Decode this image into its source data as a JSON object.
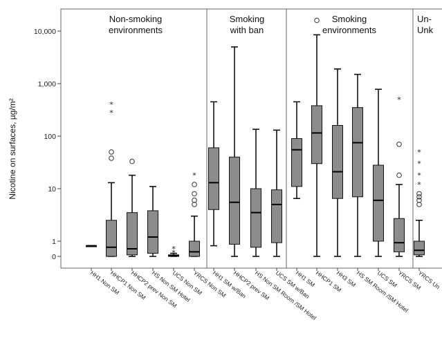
{
  "chart_data": {
    "type": "boxplot",
    "ylabel": "Nicotine on surfaces, µg/m²",
    "y_scale": "log (0 shown below 1)",
    "y_ticks": [
      {
        "value": 10000,
        "label": "10,000"
      },
      {
        "value": 1000,
        "label": "1,000"
      },
      {
        "value": 100,
        "label": "100"
      },
      {
        "value": 10,
        "label": "10"
      },
      {
        "value": 1,
        "label": "1"
      },
      {
        "value": 0,
        "label": "0"
      }
    ],
    "groups": [
      {
        "lines": [
          "Non-smoking",
          "environments"
        ]
      },
      {
        "lines": [
          "Smoking",
          "with ban"
        ]
      },
      {
        "lines": [
          "Smoking",
          "environments"
        ]
      },
      {
        "lines": [
          "Un-",
          "known"
        ]
      }
    ],
    "categories": [
      {
        "label": "HH1 Non SM",
        "group": 0,
        "min": 0.7,
        "q1": 0.7,
        "median": 0.7,
        "q3": 0.7,
        "max": 0.7,
        "circles": [],
        "stars": []
      },
      {
        "label": "HHCP1 Non SM",
        "group": 0,
        "min": 0,
        "q1": 0,
        "median": 0.6,
        "q3": 2.5,
        "max": 13,
        "circles": [
          50,
          38
        ],
        "stars": [
          400,
          280
        ]
      },
      {
        "label": "HHCP2 prev Non SM",
        "group": 0,
        "min": 0,
        "q1": 0.1,
        "median": 0.5,
        "q3": 3.5,
        "max": 18,
        "circles": [
          33
        ],
        "stars": []
      },
      {
        "label": "HS Non SM Hotel",
        "group": 0,
        "min": 0,
        "q1": 0.2,
        "median": 1.2,
        "q3": 3.8,
        "max": 11,
        "circles": [],
        "stars": []
      },
      {
        "label": "UCS Non SM",
        "group": 0,
        "min": 0,
        "q1": 0,
        "median": 0.05,
        "q3": 0.1,
        "max": 0.2,
        "circles": [],
        "stars": [
          0.5,
          0.25
        ]
      },
      {
        "label": "YRCS Non SM",
        "group": 0,
        "min": 0,
        "q1": 0,
        "median": 0.3,
        "q3": 1,
        "max": 3,
        "circles": [
          12,
          8,
          6,
          5
        ],
        "stars": [
          18
        ]
      },
      {
        "label": "HH1 SM w/Ban",
        "group": 1,
        "min": 0.7,
        "q1": 4,
        "median": 13,
        "q3": 60,
        "max": 450,
        "circles": [],
        "stars": []
      },
      {
        "label": "HHCP2 prev SM",
        "group": 1,
        "min": 0,
        "q1": 0.8,
        "median": 5.5,
        "q3": 40,
        "max": 5000,
        "circles": [],
        "stars": []
      },
      {
        "label": "HS Non SM Room /SM Hotel",
        "group": 1,
        "min": 0,
        "q1": 0.6,
        "median": 3.5,
        "q3": 10,
        "max": 135,
        "circles": [],
        "stars": []
      },
      {
        "label": "UCS SM w/Ban",
        "group": 1,
        "min": 0,
        "q1": 0.9,
        "median": 5,
        "q3": 9.5,
        "max": 130,
        "circles": [],
        "stars": []
      },
      {
        "label": "HH1 SM",
        "group": 2,
        "min": 6.5,
        "q1": 11,
        "median": 55,
        "q3": 90,
        "max": 450,
        "circles": [],
        "stars": []
      },
      {
        "label": "HHCP1 SM",
        "group": 2,
        "min": 0,
        "q1": 30,
        "median": 115,
        "q3": 380,
        "max": 8500,
        "circles": [
          16000
        ],
        "stars": []
      },
      {
        "label": "HH3 SM",
        "group": 2,
        "min": 0,
        "q1": 6.5,
        "median": 21,
        "q3": 160,
        "max": 1900,
        "circles": [],
        "stars": []
      },
      {
        "label": "HS SM Room /SM Hotel",
        "group": 2,
        "min": 0,
        "q1": 7,
        "median": 75,
        "q3": 350,
        "max": 1500,
        "circles": [],
        "stars": []
      },
      {
        "label": "UCS SM",
        "group": 2,
        "min": 0,
        "q1": 1,
        "median": 6,
        "q3": 28,
        "max": 780,
        "circles": [],
        "stars": []
      },
      {
        "label": "YRCS SM",
        "group": 2,
        "min": 0,
        "q1": 0.3,
        "median": 0.9,
        "q3": 2.7,
        "max": 12,
        "circles": [
          70,
          18
        ],
        "stars": [
          500
        ]
      },
      {
        "label": "YRCS Un",
        "group": 3,
        "min": 0,
        "q1": 0.1,
        "median": 0.4,
        "q3": 1,
        "max": 2.5,
        "circles": [
          8,
          7,
          6,
          5
        ],
        "stars": [
          50,
          30,
          18,
          12
        ]
      }
    ],
    "cut_label": "Unk",
    "grid": false,
    "legend": "none"
  }
}
